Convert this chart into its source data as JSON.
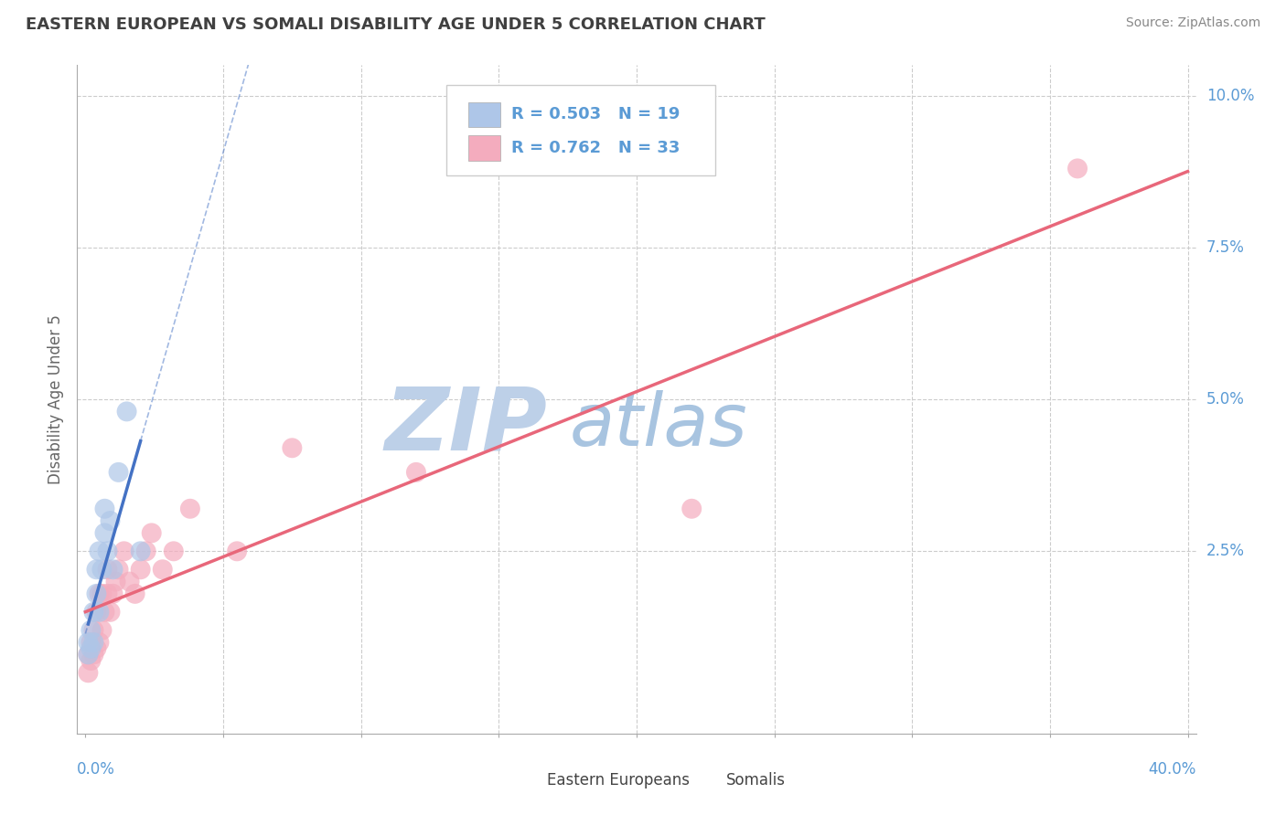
{
  "title": "EASTERN EUROPEAN VS SOMALI DISABILITY AGE UNDER 5 CORRELATION CHART",
  "source": "Source: ZipAtlas.com",
  "ylabel": "Disability Age Under 5",
  "watermark_zip": "ZIP",
  "watermark_atlas": "atlas",
  "xlim": [
    -0.003,
    0.403
  ],
  "ylim": [
    -0.005,
    0.105
  ],
  "ytick_vals": [
    0.0,
    0.025,
    0.05,
    0.075,
    0.1
  ],
  "ytick_labels": [
    "",
    "2.5%",
    "5.0%",
    "7.5%",
    "10.0%"
  ],
  "xtick_vals": [
    0.0,
    0.05,
    0.1,
    0.15,
    0.2,
    0.25,
    0.3,
    0.35,
    0.4
  ],
  "legend_blue_label": "R = 0.503   N = 19",
  "legend_pink_label": "R = 0.762   N = 33",
  "legend_eastern_label": "Eastern Europeans",
  "legend_somali_label": "Somalis",
  "blue_color": "#AEC6E8",
  "pink_color": "#F4ACBE",
  "blue_line_color": "#4472C4",
  "pink_line_color": "#E8677A",
  "title_color": "#404040",
  "axis_label_color": "#5B9BD5",
  "watermark_color_zip": "#BDD0E8",
  "watermark_color_atlas": "#A8C4E0",
  "background_color": "#FFFFFF",
  "plot_bg_color": "#FFFFFF",
  "grid_color": "#CCCCCC",
  "eastern_x": [
    0.001,
    0.001,
    0.002,
    0.002,
    0.003,
    0.003,
    0.004,
    0.004,
    0.005,
    0.005,
    0.006,
    0.007,
    0.007,
    0.008,
    0.009,
    0.01,
    0.012,
    0.015,
    0.02
  ],
  "eastern_y": [
    0.008,
    0.01,
    0.009,
    0.012,
    0.01,
    0.015,
    0.018,
    0.022,
    0.015,
    0.025,
    0.022,
    0.028,
    0.032,
    0.025,
    0.03,
    0.022,
    0.038,
    0.048,
    0.025
  ],
  "somali_x": [
    0.001,
    0.001,
    0.002,
    0.002,
    0.003,
    0.003,
    0.004,
    0.004,
    0.005,
    0.005,
    0.006,
    0.006,
    0.007,
    0.008,
    0.008,
    0.009,
    0.01,
    0.011,
    0.012,
    0.014,
    0.016,
    0.018,
    0.02,
    0.022,
    0.024,
    0.028,
    0.032,
    0.038,
    0.055,
    0.075,
    0.12,
    0.22,
    0.36
  ],
  "somali_y": [
    0.005,
    0.008,
    0.007,
    0.01,
    0.008,
    0.012,
    0.009,
    0.015,
    0.01,
    0.018,
    0.012,
    0.018,
    0.015,
    0.018,
    0.022,
    0.015,
    0.018,
    0.02,
    0.022,
    0.025,
    0.02,
    0.018,
    0.022,
    0.025,
    0.028,
    0.022,
    0.025,
    0.032,
    0.025,
    0.042,
    0.038,
    0.032,
    0.088
  ]
}
